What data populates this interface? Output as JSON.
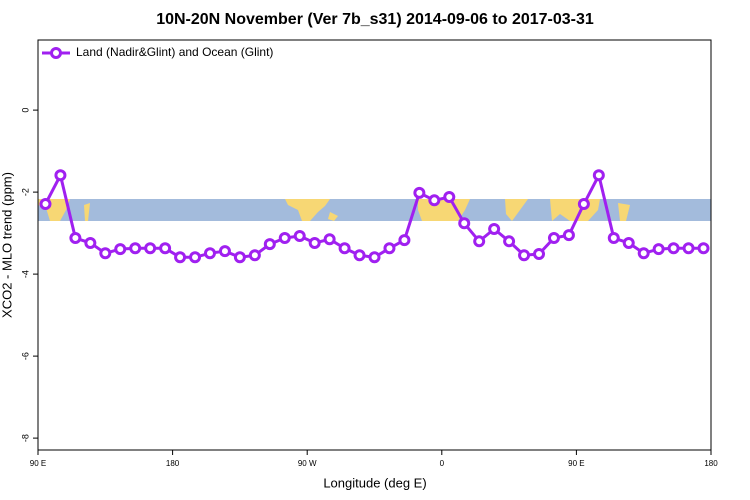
{
  "chart_data": {
    "type": "line",
    "title": "10N-20N November (Ver 7b_s31)   2014-09-06 to 2017-03-31",
    "x_label": "Longitude (deg E)",
    "y_label": "XCO2 - MLO trend (ppm)",
    "x": [
      95,
      105,
      115,
      125,
      135,
      145,
      155,
      165,
      175,
      185,
      195,
      205,
      215,
      225,
      235,
      245,
      255,
      265,
      275,
      285,
      295,
      305,
      315,
      325,
      335,
      345,
      355,
      365,
      375,
      385,
      395,
      405,
      415,
      425,
      435,
      445,
      455,
      465,
      475,
      485,
      495,
      505,
      515,
      525,
      535
    ],
    "series": [
      {
        "name": "Land (Nadir&Glint) and Ocean (Glint)",
        "color": "#a020f0",
        "values": [
          -2.29,
          -1.59,
          -3.12,
          -3.24,
          -3.49,
          -3.39,
          -3.37,
          -3.37,
          -3.37,
          -3.59,
          -3.59,
          -3.49,
          -3.44,
          -3.59,
          -3.54,
          -3.27,
          -3.12,
          -3.07,
          -3.24,
          -3.15,
          -3.37,
          -3.54,
          -3.59,
          -3.37,
          -3.17,
          -2.02,
          -2.2,
          -2.12,
          -2.76,
          -3.2,
          -2.9,
          -3.2,
          -3.54,
          -3.51,
          -3.12,
          -3.05,
          -2.29,
          -1.59,
          -3.12,
          -3.24,
          -3.49,
          -3.39,
          -3.37,
          -3.37,
          -3.37
        ]
      }
    ],
    "xlim": [
      90,
      540
    ],
    "xticks": [
      {
        "value": 90,
        "label": "90 E"
      },
      180,
      {
        "value": 270,
        "label": "90 W"
      },
      {
        "value": 360,
        "label": "0"
      },
      {
        "value": 450,
        "label": "90 E"
      },
      {
        "value": 540,
        "label": "180"
      }
    ],
    "ylim": [
      -8.29,
      1.71
    ],
    "yticks": [
      0,
      -2,
      -4,
      -6,
      -8
    ],
    "legend": "top-left"
  }
}
